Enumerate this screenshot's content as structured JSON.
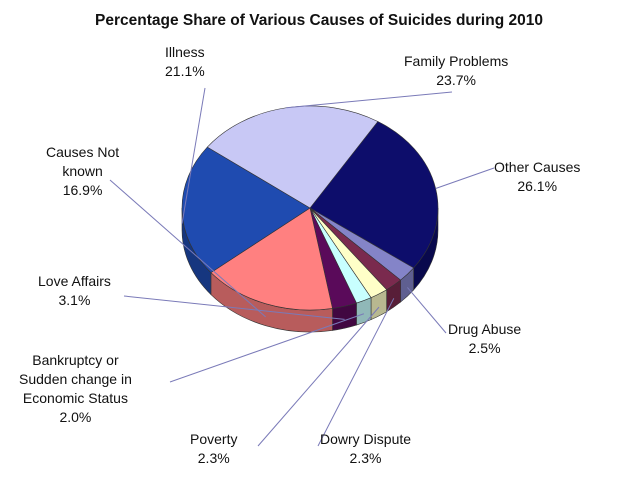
{
  "chart_data": {
    "type": "pie",
    "title": "Percentage Share of Various Causes of Suicides during 2010",
    "slices": [
      {
        "label": "Other Causes",
        "value": 26.1,
        "display": "26.1%",
        "color": "#0d0d6b"
      },
      {
        "label": "Drug Abuse",
        "value": 2.5,
        "display": "2.5%",
        "color": "#8484c8"
      },
      {
        "label": "Dowry Dispute",
        "value": 2.3,
        "display": "2.3%",
        "color": "#7a2a4e"
      },
      {
        "label": "Poverty",
        "value": 2.3,
        "display": "2.3%",
        "color": "#ffffc8"
      },
      {
        "label": "Bankruptcy or\nSudden change in\nEconomic Status",
        "value": 2.0,
        "display": "2.0%",
        "color": "#c8ffff"
      },
      {
        "label": "Love Affairs",
        "value": 3.1,
        "display": "3.1%",
        "color": "#5a0a5a"
      },
      {
        "label": "Causes Not\nknown",
        "value": 16.9,
        "display": "16.9%",
        "color": "#ff8080"
      },
      {
        "label": "Illness",
        "value": 21.1,
        "display": "21.1%",
        "color": "#1f4bb0"
      },
      {
        "label": "Family Problems",
        "value": 23.7,
        "display": "23.7%",
        "color": "#c8c8f5"
      }
    ]
  }
}
